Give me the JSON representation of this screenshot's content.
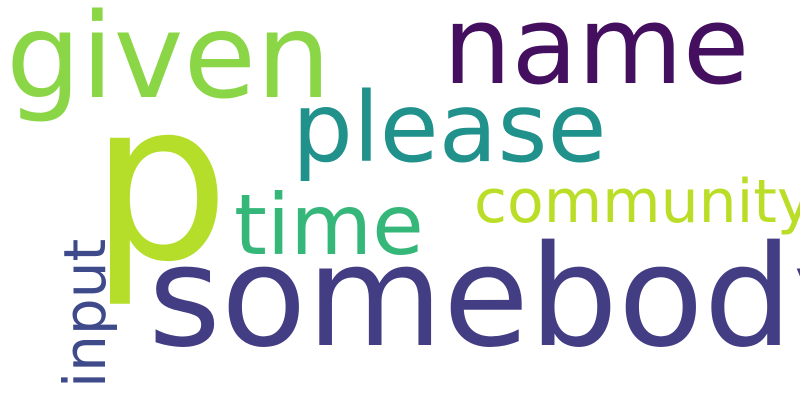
{
  "word_cloud": {
    "words": [
      {
        "id": "given",
        "text": "given",
        "color": "#8bd646"
      },
      {
        "id": "name",
        "text": "name",
        "color": "#440f5e"
      },
      {
        "id": "please",
        "text": "please",
        "color": "#21918c"
      },
      {
        "id": "p",
        "text": "p",
        "color": "#b5de2b"
      },
      {
        "id": "time",
        "text": "time",
        "color": "#35b779"
      },
      {
        "id": "community",
        "text": "community",
        "color": "#bade28"
      },
      {
        "id": "somebody",
        "text": "somebody",
        "color": "#433d84"
      },
      {
        "id": "input",
        "text": "input",
        "color": "#3e4a89"
      }
    ]
  }
}
